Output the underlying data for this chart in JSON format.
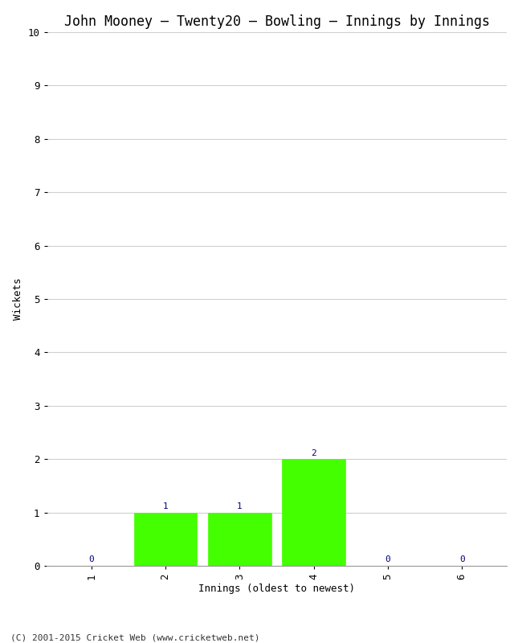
{
  "title": "John Mooney – Twenty20 – Bowling – Innings by Innings",
  "xlabel": "Innings (oldest to newest)",
  "ylabel": "Wickets",
  "categories": [
    1,
    2,
    3,
    4,
    5,
    6
  ],
  "values": [
    0,
    1,
    1,
    2,
    0,
    0
  ],
  "bar_color": "#44ff00",
  "bar_edge_color": "#44ff00",
  "label_color": "#000080",
  "ylim": [
    0,
    10
  ],
  "yticks": [
    0,
    1,
    2,
    3,
    4,
    5,
    6,
    7,
    8,
    9,
    10
  ],
  "xticks": [
    1,
    2,
    3,
    4,
    5,
    6
  ],
  "background_color": "#ffffff",
  "footer": "(C) 2001-2015 Cricket Web (www.cricketweb.net)",
  "title_fontsize": 12,
  "label_fontsize": 9,
  "tick_fontsize": 9,
  "footer_fontsize": 8,
  "bar_width": 0.85,
  "annotation_fontsize": 8
}
